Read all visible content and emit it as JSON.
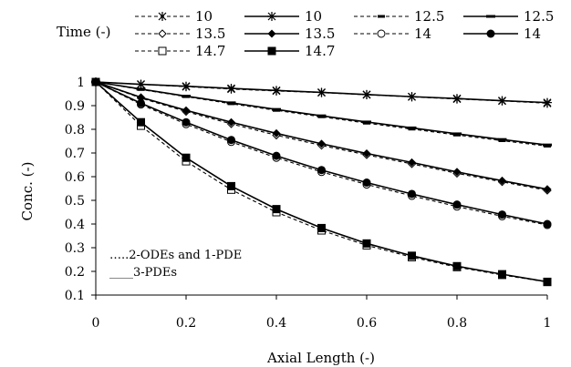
{
  "chart_data": {
    "type": "line",
    "xlabel": "Axial Length (-)",
    "ylabel": "Conc. (-)",
    "xlim": [
      0,
      1
    ],
    "ylim": [
      0.1,
      1
    ],
    "x_ticks": [
      0,
      0.2,
      0.4,
      0.6,
      0.8,
      1
    ],
    "y_ticks": [
      0.1,
      0.2,
      0.3,
      0.4,
      0.5,
      0.6,
      0.7,
      0.8,
      0.9,
      1
    ],
    "x_tick_labels": [
      "0",
      "0.2",
      "0.4",
      "0.6",
      "0.8",
      "1"
    ],
    "y_tick_labels": [
      "0.1",
      "0.2",
      "0.3",
      "0.4",
      "0.5",
      "0.6",
      "0.7",
      "0.8",
      "0.9",
      "1"
    ],
    "grid": false,
    "legend": {
      "title": "Time (-)",
      "placement": "top"
    },
    "annotations": [
      "…..2-ODEs and 1-PDE",
      "____3-PDEs"
    ],
    "line_color": "#000000",
    "x": [
      0,
      0.1,
      0.2,
      0.3,
      0.4,
      0.5,
      0.6,
      0.7,
      0.8,
      0.9,
      1.0
    ],
    "series": [
      {
        "name": "10",
        "style": "dashed",
        "marker": "asterisk",
        "values": [
          1.0,
          0.99,
          0.98,
          0.97,
          0.962,
          0.955,
          0.946,
          0.937,
          0.928,
          0.92,
          0.91
        ]
      },
      {
        "name": "10",
        "style": "solid",
        "marker": "star",
        "values": [
          1.0,
          0.99,
          0.982,
          0.973,
          0.964,
          0.956,
          0.947,
          0.938,
          0.93,
          0.921,
          0.913
        ]
      },
      {
        "name": "12.5",
        "style": "dashed",
        "marker": "dash",
        "values": [
          1.0,
          0.968,
          0.938,
          0.908,
          0.88,
          0.853,
          0.826,
          0.801,
          0.776,
          0.752,
          0.729
        ]
      },
      {
        "name": "12.5",
        "style": "solid",
        "marker": "bar",
        "values": [
          1.0,
          0.97,
          0.94,
          0.912,
          0.884,
          0.857,
          0.831,
          0.806,
          0.781,
          0.757,
          0.734
        ]
      },
      {
        "name": "13.5",
        "style": "dashed",
        "marker": "diamond-open",
        "values": [
          1.0,
          0.932,
          0.875,
          0.823,
          0.775,
          0.732,
          0.692,
          0.654,
          0.614,
          0.578,
          0.542
        ]
      },
      {
        "name": "13.5",
        "style": "solid",
        "marker": "diamond",
        "values": [
          1.0,
          0.935,
          0.88,
          0.83,
          0.783,
          0.739,
          0.698,
          0.66,
          0.62,
          0.583,
          0.547
        ]
      },
      {
        "name": "14",
        "style": "dashed",
        "marker": "circle-open",
        "values": [
          1.0,
          0.905,
          0.822,
          0.747,
          0.68,
          0.62,
          0.567,
          0.519,
          0.474,
          0.433,
          0.396
        ]
      },
      {
        "name": "14",
        "style": "solid",
        "marker": "circle",
        "values": [
          1.0,
          0.91,
          0.83,
          0.755,
          0.688,
          0.628,
          0.575,
          0.527,
          0.482,
          0.44,
          0.4
        ]
      },
      {
        "name": "14.7",
        "style": "dashed",
        "marker": "square-open",
        "values": [
          1.0,
          0.815,
          0.665,
          0.545,
          0.45,
          0.373,
          0.31,
          0.26,
          0.218,
          0.185,
          0.155
        ]
      },
      {
        "name": "14.7",
        "style": "solid",
        "marker": "square",
        "values": [
          1.0,
          0.83,
          0.68,
          0.56,
          0.463,
          0.383,
          0.318,
          0.266,
          0.222,
          0.188,
          0.156
        ]
      }
    ]
  }
}
